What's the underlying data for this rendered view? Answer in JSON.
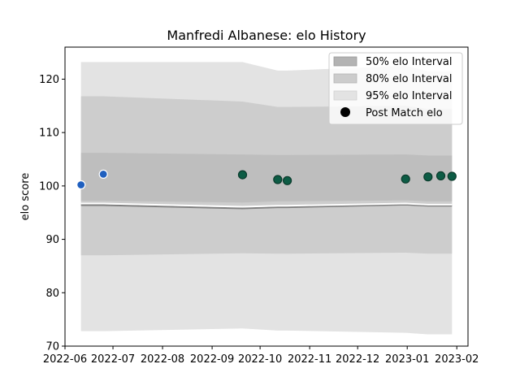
{
  "chart_data": {
    "type": "line",
    "title": "Manfredi Albanese: elo History",
    "xlabel": "",
    "ylabel": "elo score",
    "xlim": [
      "2022-06-01",
      "2023-02-08"
    ],
    "ylim": [
      70,
      126
    ],
    "x_ticks": [
      "2022-06",
      "2022-07",
      "2022-08",
      "2022-09",
      "2022-10",
      "2022-11",
      "2022-12",
      "2023-01",
      "2023-02"
    ],
    "y_ticks": [
      70,
      80,
      90,
      100,
      110,
      120
    ],
    "grid": false,
    "legend_position": "top-right",
    "legend": [
      "50% elo Interval",
      "80% elo Interval",
      "95% elo Interval",
      "Post Match elo"
    ],
    "intervals": {
      "x": [
        "2022-06-11",
        "2022-06-25",
        "2022-09-20",
        "2022-10-12",
        "2022-10-18",
        "2022-12-31",
        "2023-01-14",
        "2023-01-22",
        "2023-01-29"
      ],
      "mean": [
        96.7,
        96.7,
        96.1,
        96.3,
        96.3,
        96.7,
        96.5,
        96.5,
        96.5
      ],
      "band_50": {
        "low": [
          97.2,
          97.2,
          96.9,
          97.1,
          97.1,
          97.3,
          97.1,
          97.1,
          97.1
        ],
        "high": [
          106.2,
          106.2,
          105.9,
          105.8,
          105.8,
          105.9,
          105.7,
          105.7,
          105.7
        ]
      },
      "band_80": {
        "low": [
          87.0,
          87.0,
          87.4,
          87.3,
          87.3,
          87.5,
          87.3,
          87.3,
          87.3
        ],
        "high": [
          116.8,
          116.8,
          115.8,
          114.8,
          114.8,
          115.0,
          114.4,
          114.4,
          114.4
        ]
      },
      "band_95": {
        "low": [
          72.8,
          72.8,
          73.3,
          72.9,
          72.9,
          72.5,
          72.2,
          72.2,
          72.2
        ],
        "high": [
          123.2,
          123.2,
          123.2,
          121.6,
          121.6,
          122.5,
          121.5,
          121.5,
          121.5
        ]
      },
      "lower_line": [
        96.4,
        96.4,
        95.8,
        96.0,
        96.0,
        96.5,
        96.3,
        96.3,
        96.3
      ]
    },
    "points": [
      {
        "date": "2022-06-11",
        "elo": 100.2,
        "color": "#1f5fbf"
      },
      {
        "date": "2022-06-25",
        "elo": 102.2,
        "color": "#1f5fbf"
      },
      {
        "date": "2022-09-20",
        "elo": 102.1,
        "color": "#0d5c45"
      },
      {
        "date": "2022-10-12",
        "elo": 101.2,
        "color": "#0d5c45"
      },
      {
        "date": "2022-10-18",
        "elo": 101.0,
        "color": "#0d5c45"
      },
      {
        "date": "2022-12-31",
        "elo": 101.3,
        "color": "#0d5c45"
      },
      {
        "date": "2023-01-14",
        "elo": 101.7,
        "color": "#0d5c45"
      },
      {
        "date": "2023-01-22",
        "elo": 101.9,
        "color": "#0d5c45"
      },
      {
        "date": "2023-01-29",
        "elo": 101.8,
        "color": "#0d5c45"
      }
    ],
    "colors": {
      "band_95": "#e3e3e3",
      "band_80": "#cdcdcd",
      "band_50": "#bebebe",
      "mean_line": "#ffffff",
      "lower_line": "#808080",
      "legend_dot": "#000000"
    }
  }
}
